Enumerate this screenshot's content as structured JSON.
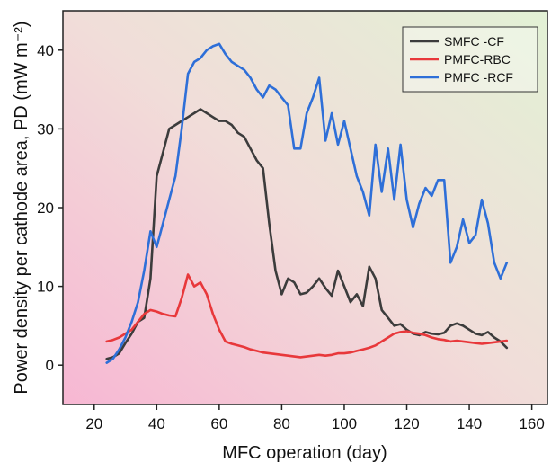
{
  "chart_data": {
    "type": "line",
    "xlabel": "MFC operation (day)",
    "ylabel": "Power density per cathode area, PD (mW m⁻²)",
    "xlim": [
      10,
      165
    ],
    "ylim": [
      -5,
      45
    ],
    "xticks": [
      20,
      40,
      60,
      80,
      100,
      120,
      140,
      160
    ],
    "yticks": [
      0,
      10,
      20,
      30,
      40
    ],
    "grid": false,
    "legend_position": "top-right",
    "background": "pink-to-green gradient",
    "series": [
      {
        "name": "SMFC -CF",
        "color": "#3c3c3c",
        "x": [
          24,
          26,
          28,
          30,
          32,
          34,
          36,
          38,
          40,
          42,
          44,
          46,
          48,
          50,
          52,
          54,
          56,
          58,
          60,
          62,
          64,
          66,
          68,
          70,
          72,
          74,
          76,
          78,
          80,
          82,
          84,
          86,
          88,
          90,
          92,
          94,
          96,
          98,
          100,
          102,
          104,
          106,
          108,
          110,
          112,
          114,
          116,
          118,
          120,
          122,
          124,
          126,
          128,
          130,
          132,
          134,
          136,
          138,
          140,
          142,
          144,
          146,
          148,
          150,
          152
        ],
        "y": [
          0.8,
          1.0,
          1.5,
          2.8,
          4.0,
          5.5,
          6.0,
          11.0,
          24.0,
          27.0,
          30.0,
          30.5,
          31.0,
          31.5,
          32.0,
          32.5,
          32.0,
          31.5,
          31.0,
          31.0,
          30.5,
          29.5,
          29.0,
          27.5,
          26.0,
          25.0,
          18.0,
          12.0,
          9.0,
          11.0,
          10.5,
          9.0,
          9.2,
          10.0,
          11.0,
          9.8,
          8.8,
          12.0,
          10.0,
          8.0,
          9.0,
          7.5,
          12.5,
          11.0,
          7.0,
          6.0,
          5.0,
          5.2,
          4.5,
          4.0,
          3.8,
          4.2,
          4.0,
          3.9,
          4.1,
          5.0,
          5.3,
          5.0,
          4.5,
          4.0,
          3.8,
          4.2,
          3.5,
          3.0,
          2.2
        ]
      },
      {
        "name": "PMFC-RBC",
        "color": "#e8383b",
        "x": [
          24,
          26,
          28,
          30,
          32,
          34,
          36,
          38,
          40,
          42,
          44,
          46,
          48,
          50,
          52,
          54,
          56,
          58,
          60,
          62,
          64,
          66,
          68,
          70,
          72,
          74,
          76,
          78,
          80,
          82,
          84,
          86,
          88,
          90,
          92,
          94,
          96,
          98,
          100,
          102,
          104,
          106,
          108,
          110,
          112,
          114,
          116,
          118,
          120,
          122,
          124,
          126,
          128,
          130,
          132,
          134,
          136,
          138,
          140,
          142,
          144,
          146,
          148,
          150,
          152
        ],
        "y": [
          3.0,
          3.2,
          3.5,
          4.0,
          4.5,
          5.5,
          6.5,
          7.0,
          6.8,
          6.5,
          6.3,
          6.2,
          8.5,
          11.5,
          10.0,
          10.5,
          9.0,
          6.5,
          4.5,
          3.0,
          2.7,
          2.5,
          2.3,
          2.0,
          1.8,
          1.6,
          1.5,
          1.4,
          1.3,
          1.2,
          1.1,
          1.0,
          1.1,
          1.2,
          1.3,
          1.2,
          1.3,
          1.5,
          1.5,
          1.6,
          1.8,
          2.0,
          2.2,
          2.5,
          3.0,
          3.5,
          4.0,
          4.2,
          4.3,
          4.1,
          4.0,
          3.8,
          3.5,
          3.3,
          3.2,
          3.0,
          3.1,
          3.0,
          2.9,
          2.8,
          2.7,
          2.8,
          2.9,
          3.0,
          3.1
        ]
      },
      {
        "name": "PMFC -RCF",
        "color": "#2e6fd8",
        "x": [
          24,
          26,
          28,
          30,
          32,
          34,
          36,
          38,
          40,
          42,
          44,
          46,
          48,
          50,
          52,
          54,
          56,
          58,
          60,
          62,
          64,
          66,
          68,
          70,
          72,
          74,
          76,
          78,
          80,
          82,
          84,
          86,
          88,
          90,
          92,
          94,
          96,
          98,
          100,
          102,
          104,
          106,
          108,
          110,
          112,
          114,
          116,
          118,
          120,
          122,
          124,
          126,
          128,
          130,
          132,
          134,
          136,
          138,
          140,
          142,
          144,
          146,
          148,
          150,
          152
        ],
        "y": [
          0.3,
          0.8,
          2.0,
          3.5,
          5.5,
          8.0,
          12.0,
          17.0,
          15.0,
          18.0,
          21.0,
          24.0,
          30.0,
          37.0,
          38.5,
          39.0,
          40.0,
          40.5,
          40.8,
          39.5,
          38.5,
          38.0,
          37.5,
          36.5,
          35.0,
          34.0,
          35.5,
          35.0,
          34.0,
          33.0,
          27.5,
          27.5,
          32.0,
          34.0,
          36.5,
          28.5,
          32.0,
          28.0,
          31.0,
          27.5,
          24.0,
          22.0,
          19.0,
          28.0,
          22.0,
          27.5,
          21.0,
          28.0,
          21.0,
          17.5,
          20.5,
          22.5,
          21.5,
          23.5,
          23.5,
          13.0,
          15.0,
          18.5,
          15.5,
          16.5,
          21.0,
          18.0,
          13.0,
          11.0,
          13.0
        ]
      }
    ]
  }
}
